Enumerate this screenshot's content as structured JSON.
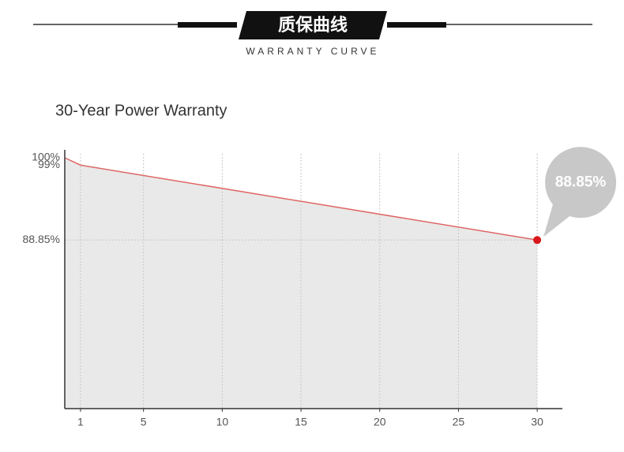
{
  "header": {
    "title": "质保曲线",
    "subtitle": "WARRANTY CURVE"
  },
  "chart_data": {
    "type": "line",
    "title": "30-Year Power Warranty",
    "x": [
      0,
      1,
      30
    ],
    "values": [
      100,
      99,
      88.85
    ],
    "value_labels": [
      null,
      null,
      "88.85%"
    ],
    "color": "#e06666",
    "area_color": "#e9e9e9",
    "marker_color": "#d9161c",
    "xlim": [
      0,
      31.6
    ],
    "ylim": [
      66,
      100
    ],
    "xticks": [
      1,
      5,
      10,
      15,
      20,
      25,
      30
    ],
    "yticks": [
      {
        "value": 100,
        "label": "100%"
      },
      {
        "value": 99,
        "label": "99%"
      },
      {
        "value": 88.85,
        "label": "88.85%"
      }
    ],
    "grid": true
  }
}
